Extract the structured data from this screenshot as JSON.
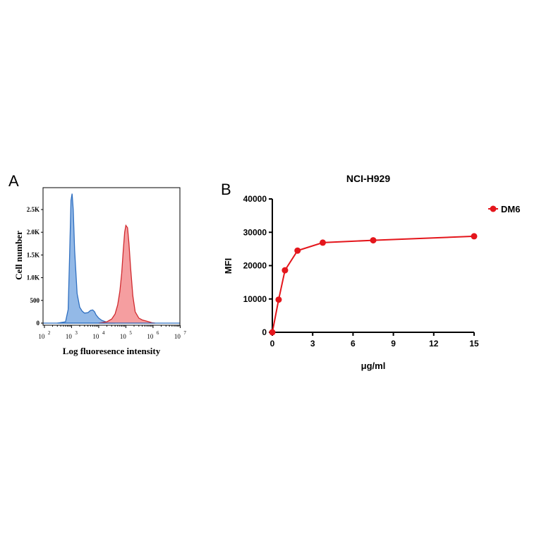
{
  "chart_data": [
    {
      "panel_label": "A",
      "type": "area",
      "xlabel": "Log fluoresence intensity",
      "ylabel": "Cell number",
      "xscale": "log",
      "xlim": [
        100,
        10000000
      ],
      "ylim": [
        0,
        3000
      ],
      "x_ticks": [
        {
          "base": "10",
          "exp": "2"
        },
        {
          "base": "10",
          "exp": "3"
        },
        {
          "base": "10",
          "exp": "4"
        },
        {
          "base": "10",
          "exp": "5"
        },
        {
          "base": "10",
          "exp": "6"
        },
        {
          "base": "10",
          "exp": "7"
        }
      ],
      "y_ticks": [
        {
          "v": 0,
          "label": "0"
        },
        {
          "v": 500,
          "label": "500"
        },
        {
          "v": 1000,
          "label": "1.0K"
        },
        {
          "v": 1500,
          "label": "1.5K"
        },
        {
          "v": 2000,
          "label": "2.0K"
        },
        {
          "v": 2500,
          "label": "2.5K"
        }
      ],
      "series": [
        {
          "color": "#2f6fc0",
          "fill": "#8db5e6",
          "x": [
            300,
            600,
            750,
            850,
            950,
            1050,
            1150,
            1300,
            1600,
            2000,
            2500,
            3000,
            4000,
            5000,
            6000,
            7000,
            8000,
            10000,
            13000,
            18000,
            25000,
            40000
          ],
          "y": [
            0,
            30,
            300,
            1500,
            2700,
            2850,
            2500,
            1600,
            650,
            350,
            260,
            220,
            230,
            280,
            290,
            250,
            180,
            110,
            60,
            30,
            10,
            0
          ]
        },
        {
          "color": "#d02a2f",
          "fill": "#f4999b",
          "x": [
            10000,
            20000,
            30000,
            40000,
            50000,
            60000,
            70000,
            80000,
            90000,
            100000,
            115000,
            130000,
            150000,
            180000,
            220000,
            300000,
            400000,
            600000,
            900000,
            1200000
          ],
          "y": [
            0,
            30,
            90,
            200,
            400,
            700,
            1100,
            1600,
            2000,
            2150,
            2100,
            1750,
            1200,
            600,
            250,
            110,
            70,
            40,
            10,
            0
          ]
        }
      ]
    },
    {
      "panel_label": "B",
      "type": "line",
      "title": "NCI-H929",
      "xlabel": "μg/ml",
      "ylabel": "MFI",
      "xlim": [
        0,
        15
      ],
      "ylim": [
        0,
        40000
      ],
      "x_ticks": [
        "0",
        "3",
        "6",
        "9",
        "12",
        "15"
      ],
      "y_ticks": [
        "0",
        "10000",
        "20000",
        "30000",
        "40000"
      ],
      "legend_position": "top-right",
      "series": [
        {
          "name": "DM6",
          "color": "#e4161c",
          "x": [
            0,
            0.47,
            0.94,
            1.875,
            3.75,
            7.5,
            15
          ],
          "y": [
            0,
            9800,
            18600,
            24500,
            26900,
            27600,
            28800
          ]
        }
      ]
    }
  ]
}
